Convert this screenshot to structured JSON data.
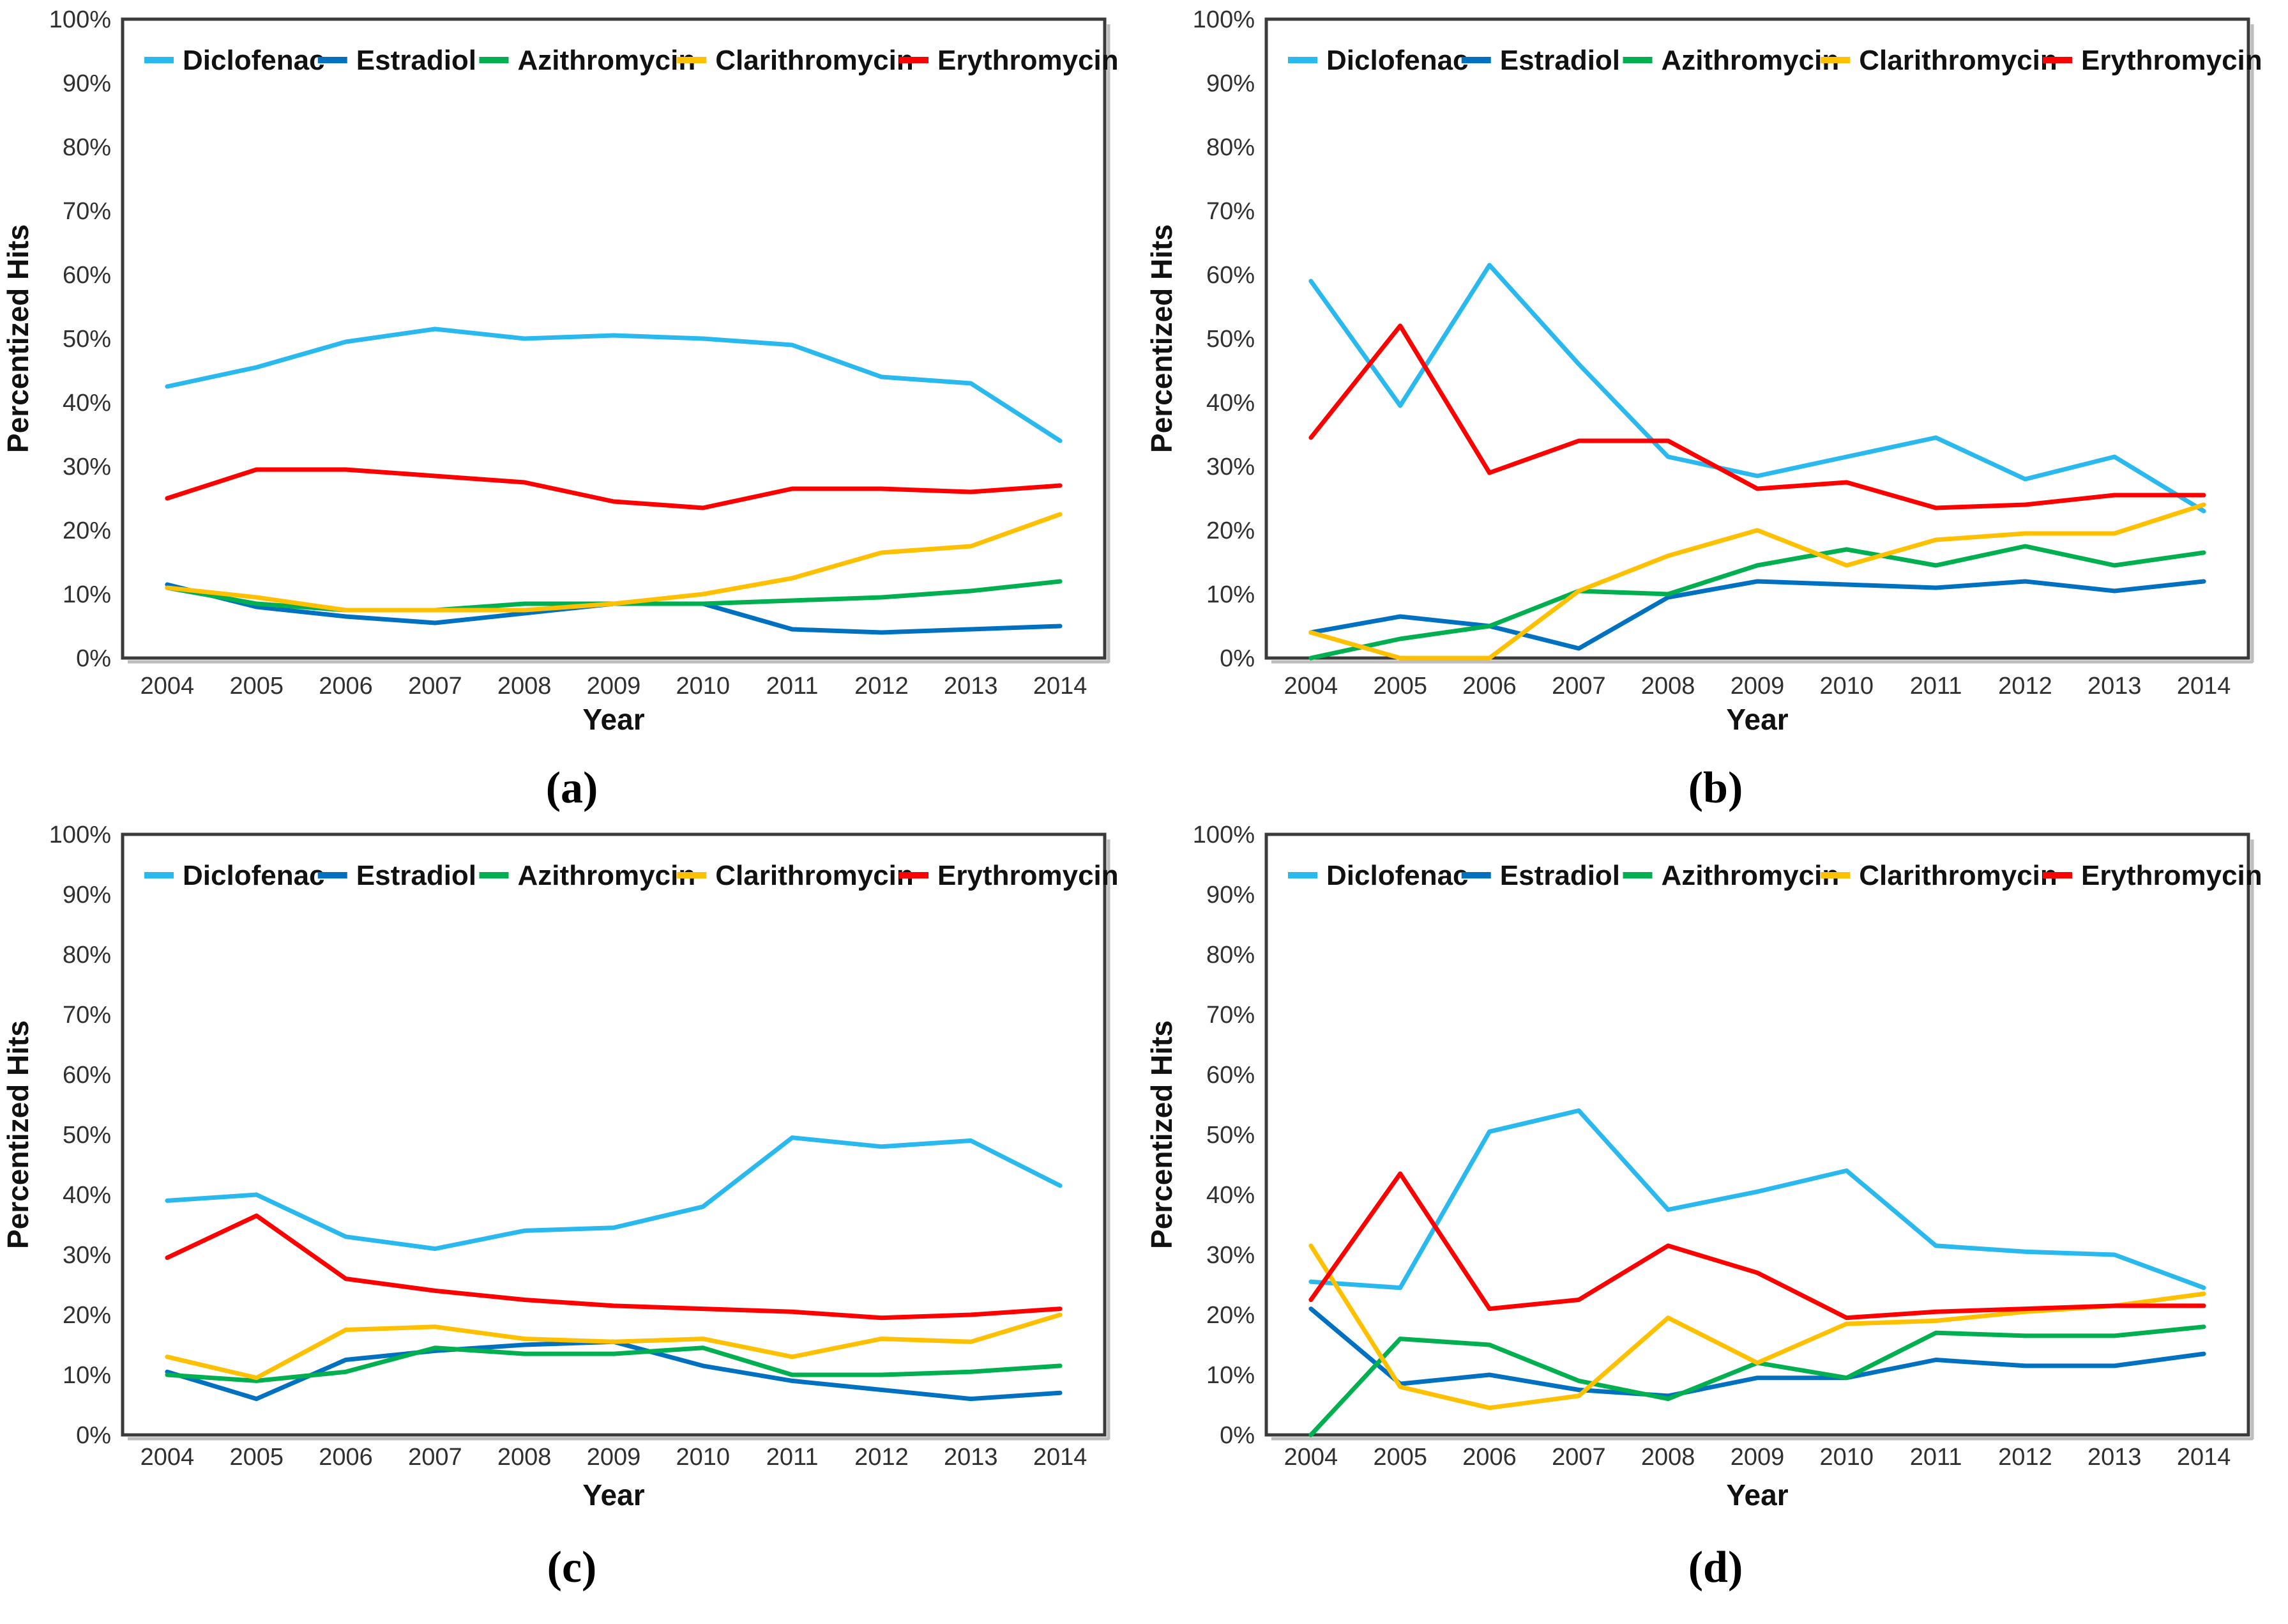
{
  "figure": {
    "description": "Four-panel line chart figure comparing percentized hits per year for five pharmaceuticals"
  },
  "axes": {
    "x_label": "Year",
    "y_label": "Percentized Hits",
    "x_ticks": [
      "2004",
      "2005",
      "2006",
      "2007",
      "2008",
      "2009",
      "2010",
      "2011",
      "2012",
      "2013",
      "2014"
    ],
    "y_ticks": [
      "0%",
      "10%",
      "20%",
      "30%",
      "40%",
      "50%",
      "60%",
      "70%",
      "80%",
      "90%",
      "100%"
    ]
  },
  "legend": [
    {
      "name": "Diclofenac",
      "color": "#29B9EE"
    },
    {
      "name": "Estradiol",
      "color": "#0070C0"
    },
    {
      "name": "Azithromycin",
      "color": "#00B050"
    },
    {
      "name": "Clarithromycin",
      "color": "#FFC000"
    },
    {
      "name": "Erythromycin",
      "color": "#FF0000"
    }
  ],
  "chart_data": [
    {
      "type": "line",
      "panel": "a",
      "caption": "(a)",
      "xlabel": "Year",
      "ylabel": "Percentized Hits",
      "ylim": [
        0,
        100
      ],
      "grid": false,
      "legend_position": "top-inside",
      "categories": [
        2004,
        2005,
        2006,
        2007,
        2008,
        2009,
        2010,
        2011,
        2012,
        2013,
        2014
      ],
      "series": [
        {
          "name": "Diclofenac",
          "values": [
            42.5,
            45.5,
            49.5,
            51.5,
            50,
            50.5,
            50,
            49,
            44,
            43,
            34
          ]
        },
        {
          "name": "Estradiol",
          "values": [
            11.5,
            8,
            6.5,
            5.5,
            7,
            8.5,
            8.5,
            4.5,
            4,
            4.5,
            5
          ]
        },
        {
          "name": "Azithromycin",
          "values": [
            11,
            8.5,
            7.5,
            7.5,
            8.5,
            8.5,
            8.5,
            9,
            9.5,
            10.5,
            12
          ]
        },
        {
          "name": "Clarithromycin",
          "values": [
            11,
            9.5,
            7.5,
            7.5,
            7.5,
            8.5,
            10,
            12.5,
            16.5,
            17.5,
            22.5
          ]
        },
        {
          "name": "Erythromycin",
          "values": [
            25,
            29.5,
            29.5,
            28.5,
            27.5,
            24.5,
            23.5,
            26.5,
            26.5,
            26,
            27
          ]
        }
      ]
    },
    {
      "type": "line",
      "panel": "b",
      "caption": "(b)",
      "xlabel": "Year",
      "ylabel": "Percentized Hits",
      "ylim": [
        0,
        100
      ],
      "grid": false,
      "legend_position": "top-inside",
      "categories": [
        2004,
        2005,
        2006,
        2007,
        2008,
        2009,
        2010,
        2011,
        2012,
        2013,
        2014
      ],
      "series": [
        {
          "name": "Diclofenac",
          "values": [
            59,
            39.5,
            61.5,
            46,
            31.5,
            28.5,
            31.5,
            34.5,
            28,
            31.5,
            23
          ]
        },
        {
          "name": "Estradiol",
          "values": [
            4,
            6.5,
            5,
            1.5,
            9.5,
            12,
            11.5,
            11,
            12,
            10.5,
            12
          ]
        },
        {
          "name": "Azithromycin",
          "values": [
            0,
            3,
            5,
            10.5,
            10,
            14.5,
            17,
            14.5,
            17.5,
            14.5,
            16.5
          ]
        },
        {
          "name": "Clarithromycin",
          "values": [
            4,
            0,
            0,
            10.5,
            16,
            20,
            14.5,
            18.5,
            19.5,
            19.5,
            24
          ]
        },
        {
          "name": "Erythromycin",
          "values": [
            34.5,
            52,
            29,
            34,
            34,
            26.5,
            27.5,
            23.5,
            24,
            25.5,
            25.5
          ]
        }
      ]
    },
    {
      "type": "line",
      "panel": "c",
      "caption": "(c)",
      "xlabel": "Year",
      "ylabel": "Percentized Hits",
      "ylim": [
        0,
        100
      ],
      "grid": false,
      "legend_position": "top-inside",
      "categories": [
        2004,
        2005,
        2006,
        2007,
        2008,
        2009,
        2010,
        2011,
        2012,
        2013,
        2014
      ],
      "series": [
        {
          "name": "Diclofenac",
          "values": [
            39,
            40,
            33,
            31,
            34,
            34.5,
            38,
            49.5,
            48,
            49,
            41.5
          ]
        },
        {
          "name": "Estradiol",
          "values": [
            10.5,
            6,
            12.5,
            14,
            15,
            15.5,
            11.5,
            9,
            7.5,
            6,
            7
          ]
        },
        {
          "name": "Azithromycin",
          "values": [
            10,
            9,
            10.5,
            14.5,
            13.5,
            13.5,
            14.5,
            10,
            10,
            10.5,
            11.5
          ]
        },
        {
          "name": "Clarithromycin",
          "values": [
            13,
            9.5,
            17.5,
            18,
            16,
            15.5,
            16,
            13,
            16,
            15.5,
            20
          ]
        },
        {
          "name": "Erythromycin",
          "values": [
            29.5,
            36.5,
            26,
            24,
            22.5,
            21.5,
            21,
            20.5,
            19.5,
            20,
            21
          ]
        }
      ]
    },
    {
      "type": "line",
      "panel": "d",
      "caption": "(d)",
      "xlabel": "Year",
      "ylabel": "Percentized Hits",
      "ylim": [
        0,
        100
      ],
      "grid": false,
      "legend_position": "top-inside",
      "categories": [
        2004,
        2005,
        2006,
        2007,
        2008,
        2009,
        2010,
        2011,
        2012,
        2013,
        2014
      ],
      "series": [
        {
          "name": "Diclofenac",
          "values": [
            25.5,
            24.5,
            50.5,
            54,
            37.5,
            40.5,
            44,
            31.5,
            30.5,
            30,
            24.5
          ]
        },
        {
          "name": "Estradiol",
          "values": [
            21,
            8.5,
            10,
            7.5,
            6.5,
            9.5,
            9.5,
            12.5,
            11.5,
            11.5,
            13.5
          ]
        },
        {
          "name": "Azithromycin",
          "values": [
            0,
            16,
            15,
            9,
            6,
            12,
            9.5,
            17,
            16.5,
            16.5,
            18
          ]
        },
        {
          "name": "Clarithromycin",
          "values": [
            31.5,
            8,
            4.5,
            6.5,
            19.5,
            12,
            18.5,
            19,
            20.5,
            21.5,
            23.5
          ]
        },
        {
          "name": "Erythromycin",
          "values": [
            22.5,
            43.5,
            21,
            22.5,
            31.5,
            27,
            19.5,
            20.5,
            21,
            21.5,
            21.5
          ]
        }
      ]
    }
  ]
}
